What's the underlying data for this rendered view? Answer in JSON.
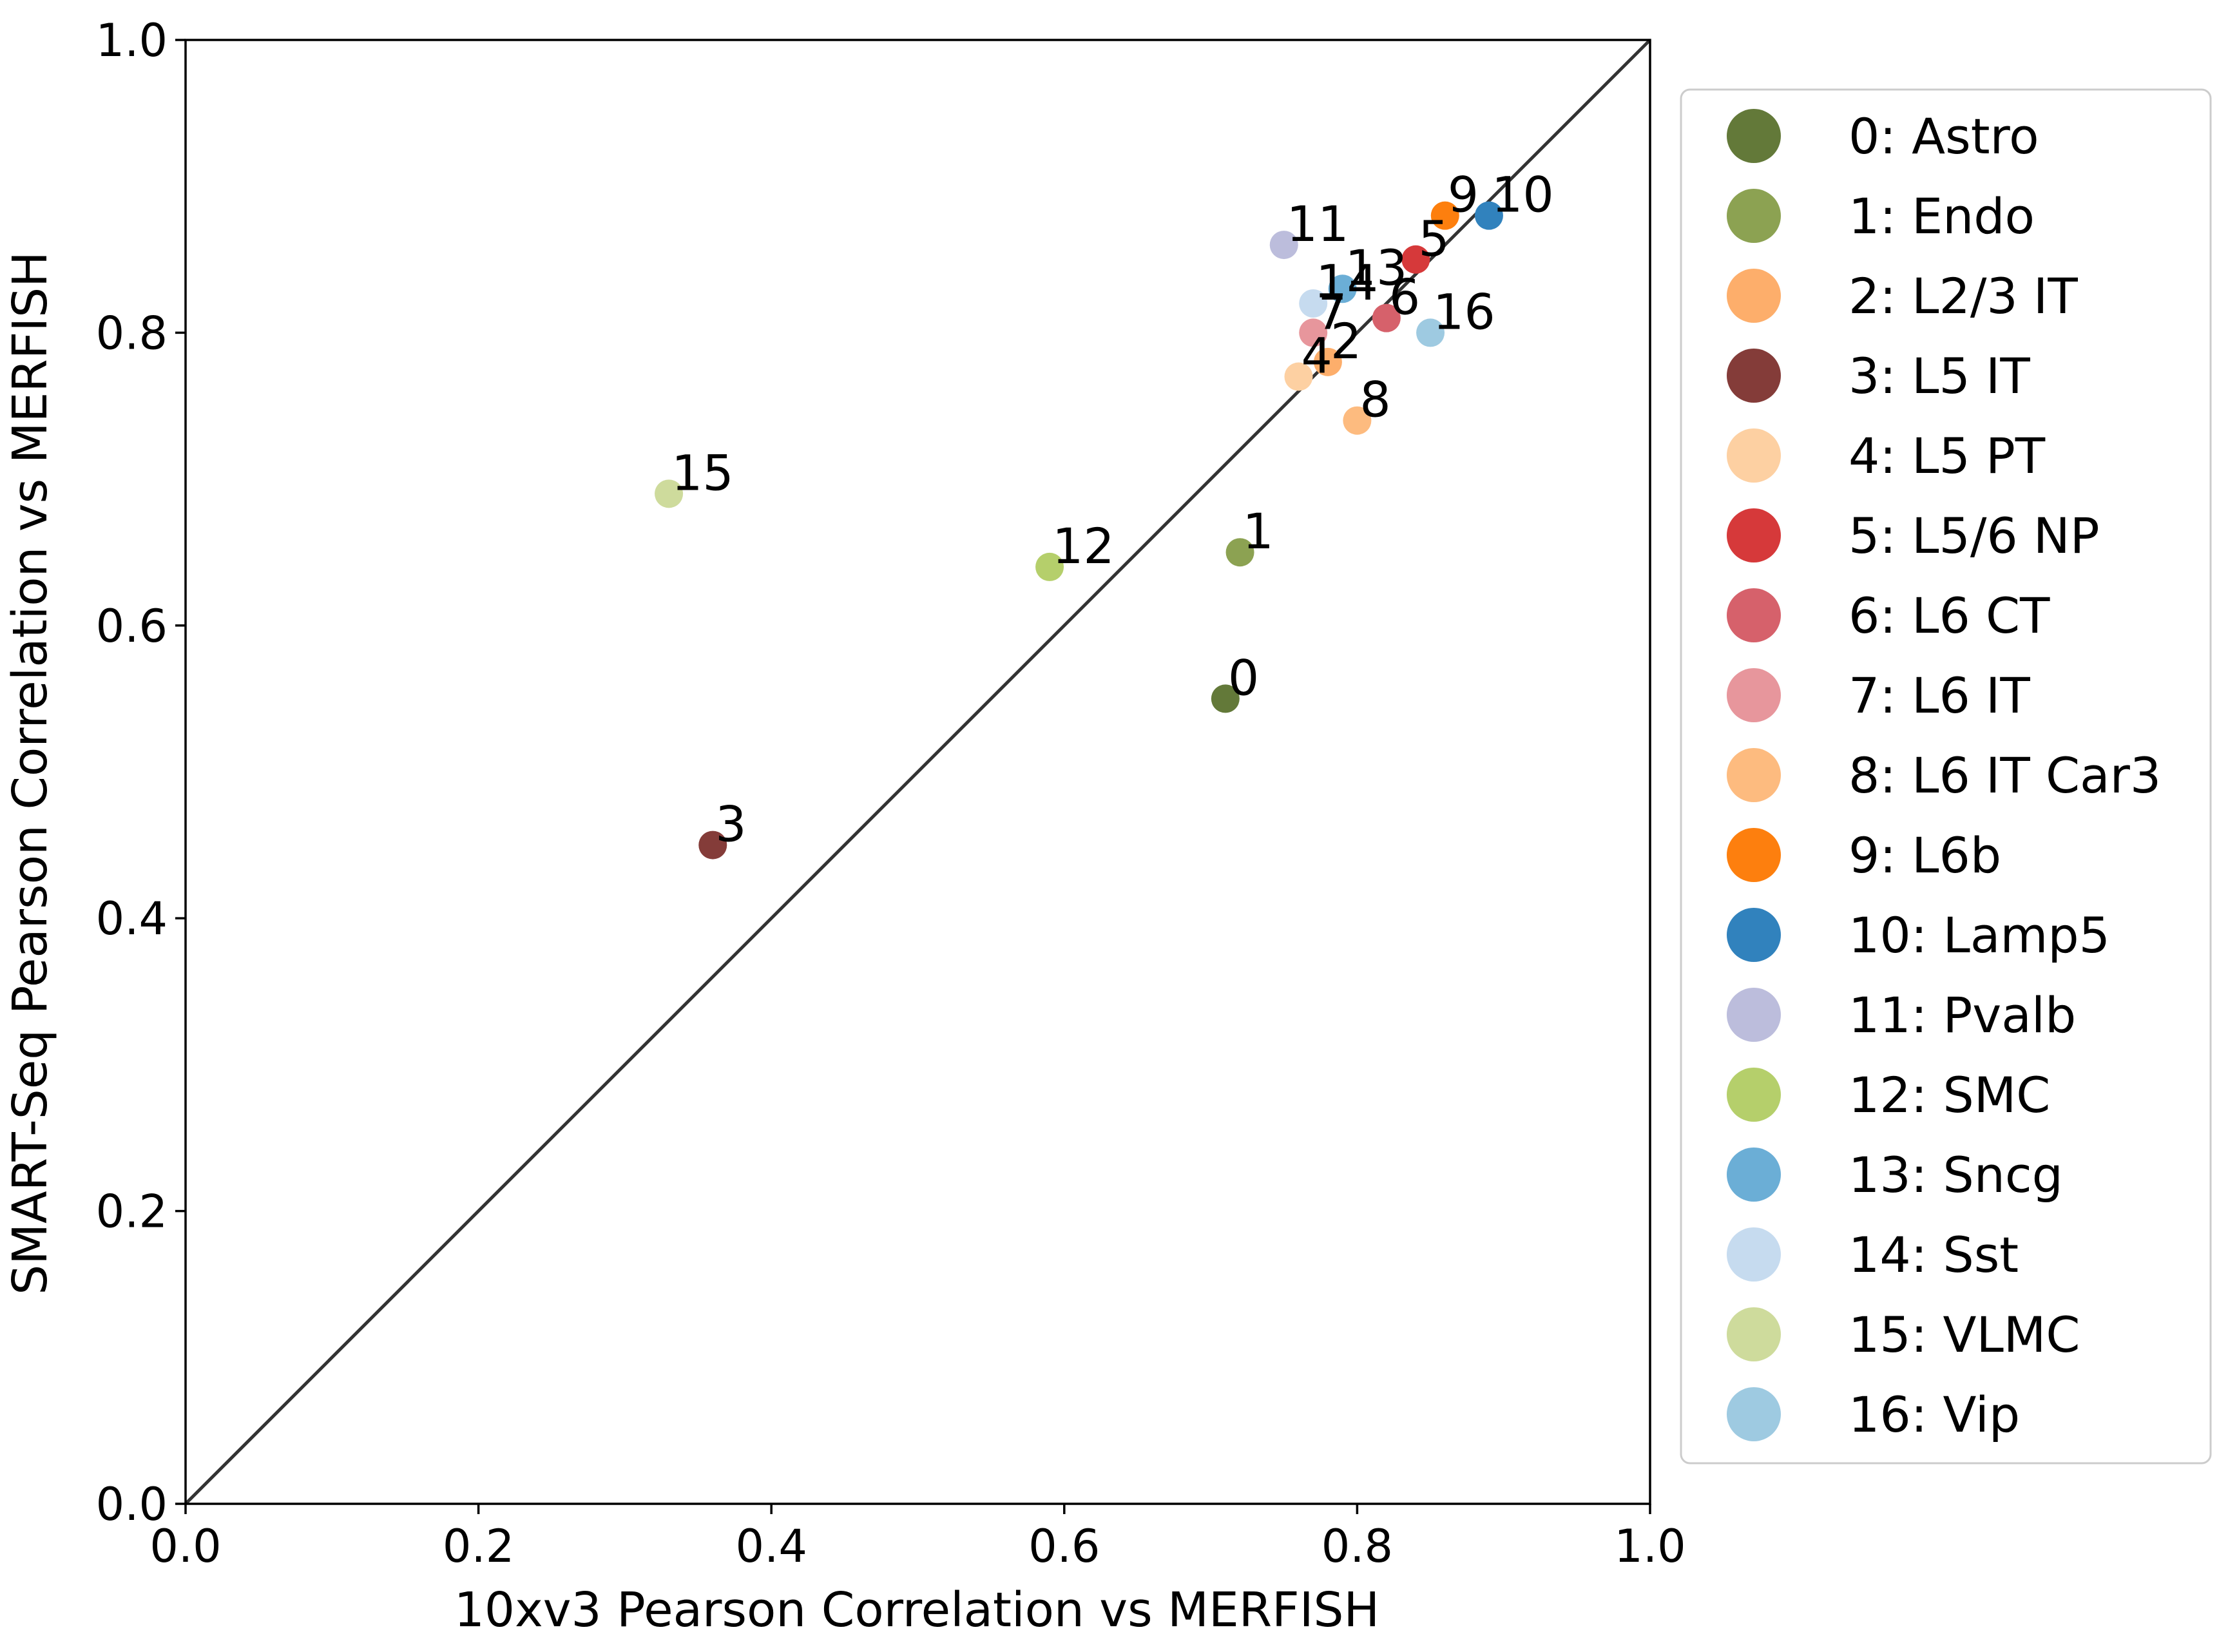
{
  "chart_data": {
    "type": "scatter",
    "xlabel": "10xv3 Pearson Correlation vs MERFISH",
    "ylabel": "SMART-Seq Pearson Correlation vs MERFISH",
    "xlim": [
      0.0,
      1.0
    ],
    "ylim": [
      0.0,
      1.0
    ],
    "xticks": [
      "0.0",
      "0.2",
      "0.4",
      "0.6",
      "0.8",
      "1.0"
    ],
    "yticks": [
      "0.0",
      "0.2",
      "0.4",
      "0.6",
      "0.8",
      "1.0"
    ],
    "grid": false,
    "reference_line": "y = x",
    "legend_position": "right, outside plot",
    "points": [
      {
        "id": "0",
        "legend": "0: Astro",
        "x": 0.71,
        "y": 0.55,
        "color": "#637939"
      },
      {
        "id": "1",
        "legend": "1: Endo",
        "x": 0.72,
        "y": 0.65,
        "color": "#8ca252"
      },
      {
        "id": "2",
        "legend": "2: L2/3 IT",
        "x": 0.78,
        "y": 0.78,
        "color": "#fdae6b"
      },
      {
        "id": "3",
        "legend": "3: L5 IT",
        "x": 0.36,
        "y": 0.45,
        "color": "#843c39"
      },
      {
        "id": "4",
        "legend": "4: L5 PT",
        "x": 0.76,
        "y": 0.77,
        "color": "#fdd0a2"
      },
      {
        "id": "5",
        "legend": "5: L5/6 NP",
        "x": 0.84,
        "y": 0.85,
        "color": "#d6393a"
      },
      {
        "id": "6",
        "legend": "6: L6 CT",
        "x": 0.82,
        "y": 0.81,
        "color": "#d6616b"
      },
      {
        "id": "7",
        "legend": "7: L6 IT",
        "x": 0.77,
        "y": 0.8,
        "color": "#e7969c"
      },
      {
        "id": "8",
        "legend": "8: L6 IT Car3",
        "x": 0.8,
        "y": 0.74,
        "color": "#fdbb7f"
      },
      {
        "id": "9",
        "legend": "9: L6b",
        "x": 0.86,
        "y": 0.88,
        "color": "#fd7f0e"
      },
      {
        "id": "10",
        "legend": "10: Lamp5",
        "x": 0.89,
        "y": 0.88,
        "color": "#3182bd"
      },
      {
        "id": "11",
        "legend": "11: Pvalb",
        "x": 0.75,
        "y": 0.86,
        "color": "#bcbddc"
      },
      {
        "id": "12",
        "legend": "12: SMC",
        "x": 0.59,
        "y": 0.64,
        "color": "#b5cf6b"
      },
      {
        "id": "13",
        "legend": "13: Sncg",
        "x": 0.79,
        "y": 0.83,
        "color": "#6baed6"
      },
      {
        "id": "14",
        "legend": "14: Sst",
        "x": 0.77,
        "y": 0.82,
        "color": "#c6dbef"
      },
      {
        "id": "15",
        "legend": "15: VLMC",
        "x": 0.33,
        "y": 0.69,
        "color": "#cedb9c"
      },
      {
        "id": "16",
        "legend": "16: Vip",
        "x": 0.85,
        "y": 0.8,
        "color": "#9ecae1"
      }
    ]
  }
}
